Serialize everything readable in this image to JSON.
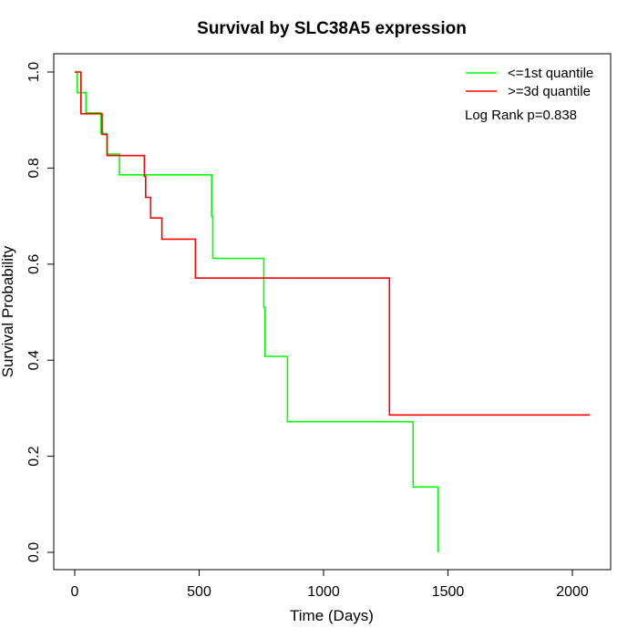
{
  "chart_data": {
    "type": "line",
    "title": "Survival by SLC38A5 expression",
    "xlabel": "Time (Days)",
    "ylabel": "Survival Probability",
    "xlim": [
      0,
      2100
    ],
    "ylim": [
      0,
      1.0
    ],
    "x_ticks": [
      0,
      500,
      1000,
      1500,
      2000
    ],
    "y_ticks": [
      0.0,
      0.2,
      0.4,
      0.6,
      0.8,
      1.0
    ],
    "x_tick_labels": [
      "0",
      "500",
      "1000",
      "1500",
      "2000"
    ],
    "y_tick_labels": [
      "0.0",
      "0.2",
      "0.4",
      "0.6",
      "0.8",
      "1.0"
    ],
    "grid": false,
    "legend_position": "top-right",
    "annotation": "Log Rank p=0.838",
    "series": [
      {
        "name": "<=1st quantile",
        "color": "#00ff00",
        "step_points": [
          [
            0,
            1.0
          ],
          [
            10,
            1.0
          ],
          [
            10,
            0.957
          ],
          [
            45,
            0.957
          ],
          [
            45,
            0.915
          ],
          [
            105,
            0.915
          ],
          [
            105,
            0.872
          ],
          [
            130,
            0.872
          ],
          [
            130,
            0.829
          ],
          [
            180,
            0.829
          ],
          [
            180,
            0.786
          ],
          [
            550,
            0.786
          ],
          [
            550,
            0.699
          ],
          [
            555,
            0.699
          ],
          [
            555,
            0.612
          ],
          [
            760,
            0.612
          ],
          [
            760,
            0.51
          ],
          [
            765,
            0.51
          ],
          [
            765,
            0.408
          ],
          [
            855,
            0.408
          ],
          [
            855,
            0.272
          ],
          [
            1360,
            0.272
          ],
          [
            1360,
            0.136
          ],
          [
            1460,
            0.136
          ],
          [
            1460,
            0.0
          ]
        ]
      },
      {
        "name": ">=3d quantile",
        "color": "#ff0000",
        "step_points": [
          [
            0,
            1.0
          ],
          [
            25,
            1.0
          ],
          [
            25,
            0.913
          ],
          [
            110,
            0.913
          ],
          [
            110,
            0.87
          ],
          [
            130,
            0.87
          ],
          [
            130,
            0.826
          ],
          [
            280,
            0.826
          ],
          [
            280,
            0.783
          ],
          [
            285,
            0.783
          ],
          [
            285,
            0.739
          ],
          [
            305,
            0.739
          ],
          [
            305,
            0.696
          ],
          [
            350,
            0.696
          ],
          [
            350,
            0.652
          ],
          [
            485,
            0.652
          ],
          [
            485,
            0.571
          ],
          [
            1265,
            0.571
          ],
          [
            1265,
            0.286
          ],
          [
            2070,
            0.286
          ]
        ]
      }
    ]
  }
}
